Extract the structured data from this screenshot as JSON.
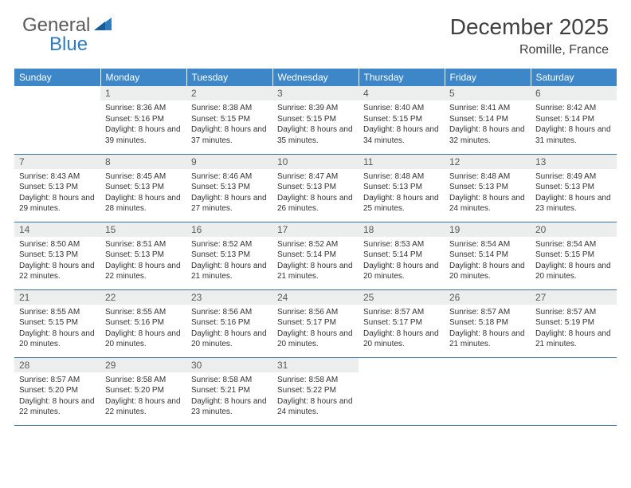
{
  "logo": {
    "part1": "General",
    "part2": "Blue"
  },
  "title": "December 2025",
  "location": "Romille, France",
  "header_bg": "#3d87c9",
  "header_fg": "#ffffff",
  "daynum_bg": "#eceeee",
  "border_color": "#3d739f",
  "columns": [
    "Sunday",
    "Monday",
    "Tuesday",
    "Wednesday",
    "Thursday",
    "Friday",
    "Saturday"
  ],
  "first_weekday_offset": 1,
  "days": [
    {
      "n": 1,
      "sr": "8:36 AM",
      "ss": "5:16 PM",
      "dl": "8 hours and 39 minutes."
    },
    {
      "n": 2,
      "sr": "8:38 AM",
      "ss": "5:15 PM",
      "dl": "8 hours and 37 minutes."
    },
    {
      "n": 3,
      "sr": "8:39 AM",
      "ss": "5:15 PM",
      "dl": "8 hours and 35 minutes."
    },
    {
      "n": 4,
      "sr": "8:40 AM",
      "ss": "5:15 PM",
      "dl": "8 hours and 34 minutes."
    },
    {
      "n": 5,
      "sr": "8:41 AM",
      "ss": "5:14 PM",
      "dl": "8 hours and 32 minutes."
    },
    {
      "n": 6,
      "sr": "8:42 AM",
      "ss": "5:14 PM",
      "dl": "8 hours and 31 minutes."
    },
    {
      "n": 7,
      "sr": "8:43 AM",
      "ss": "5:13 PM",
      "dl": "8 hours and 29 minutes."
    },
    {
      "n": 8,
      "sr": "8:45 AM",
      "ss": "5:13 PM",
      "dl": "8 hours and 28 minutes."
    },
    {
      "n": 9,
      "sr": "8:46 AM",
      "ss": "5:13 PM",
      "dl": "8 hours and 27 minutes."
    },
    {
      "n": 10,
      "sr": "8:47 AM",
      "ss": "5:13 PM",
      "dl": "8 hours and 26 minutes."
    },
    {
      "n": 11,
      "sr": "8:48 AM",
      "ss": "5:13 PM",
      "dl": "8 hours and 25 minutes."
    },
    {
      "n": 12,
      "sr": "8:48 AM",
      "ss": "5:13 PM",
      "dl": "8 hours and 24 minutes."
    },
    {
      "n": 13,
      "sr": "8:49 AM",
      "ss": "5:13 PM",
      "dl": "8 hours and 23 minutes."
    },
    {
      "n": 14,
      "sr": "8:50 AM",
      "ss": "5:13 PM",
      "dl": "8 hours and 22 minutes."
    },
    {
      "n": 15,
      "sr": "8:51 AM",
      "ss": "5:13 PM",
      "dl": "8 hours and 22 minutes."
    },
    {
      "n": 16,
      "sr": "8:52 AM",
      "ss": "5:13 PM",
      "dl": "8 hours and 21 minutes."
    },
    {
      "n": 17,
      "sr": "8:52 AM",
      "ss": "5:14 PM",
      "dl": "8 hours and 21 minutes."
    },
    {
      "n": 18,
      "sr": "8:53 AM",
      "ss": "5:14 PM",
      "dl": "8 hours and 20 minutes."
    },
    {
      "n": 19,
      "sr": "8:54 AM",
      "ss": "5:14 PM",
      "dl": "8 hours and 20 minutes."
    },
    {
      "n": 20,
      "sr": "8:54 AM",
      "ss": "5:15 PM",
      "dl": "8 hours and 20 minutes."
    },
    {
      "n": 21,
      "sr": "8:55 AM",
      "ss": "5:15 PM",
      "dl": "8 hours and 20 minutes."
    },
    {
      "n": 22,
      "sr": "8:55 AM",
      "ss": "5:16 PM",
      "dl": "8 hours and 20 minutes."
    },
    {
      "n": 23,
      "sr": "8:56 AM",
      "ss": "5:16 PM",
      "dl": "8 hours and 20 minutes."
    },
    {
      "n": 24,
      "sr": "8:56 AM",
      "ss": "5:17 PM",
      "dl": "8 hours and 20 minutes."
    },
    {
      "n": 25,
      "sr": "8:57 AM",
      "ss": "5:17 PM",
      "dl": "8 hours and 20 minutes."
    },
    {
      "n": 26,
      "sr": "8:57 AM",
      "ss": "5:18 PM",
      "dl": "8 hours and 21 minutes."
    },
    {
      "n": 27,
      "sr": "8:57 AM",
      "ss": "5:19 PM",
      "dl": "8 hours and 21 minutes."
    },
    {
      "n": 28,
      "sr": "8:57 AM",
      "ss": "5:20 PM",
      "dl": "8 hours and 22 minutes."
    },
    {
      "n": 29,
      "sr": "8:58 AM",
      "ss": "5:20 PM",
      "dl": "8 hours and 22 minutes."
    },
    {
      "n": 30,
      "sr": "8:58 AM",
      "ss": "5:21 PM",
      "dl": "8 hours and 23 minutes."
    },
    {
      "n": 31,
      "sr": "8:58 AM",
      "ss": "5:22 PM",
      "dl": "8 hours and 24 minutes."
    }
  ],
  "labels": {
    "sunrise": "Sunrise:",
    "sunset": "Sunset:",
    "daylight": "Daylight:"
  }
}
